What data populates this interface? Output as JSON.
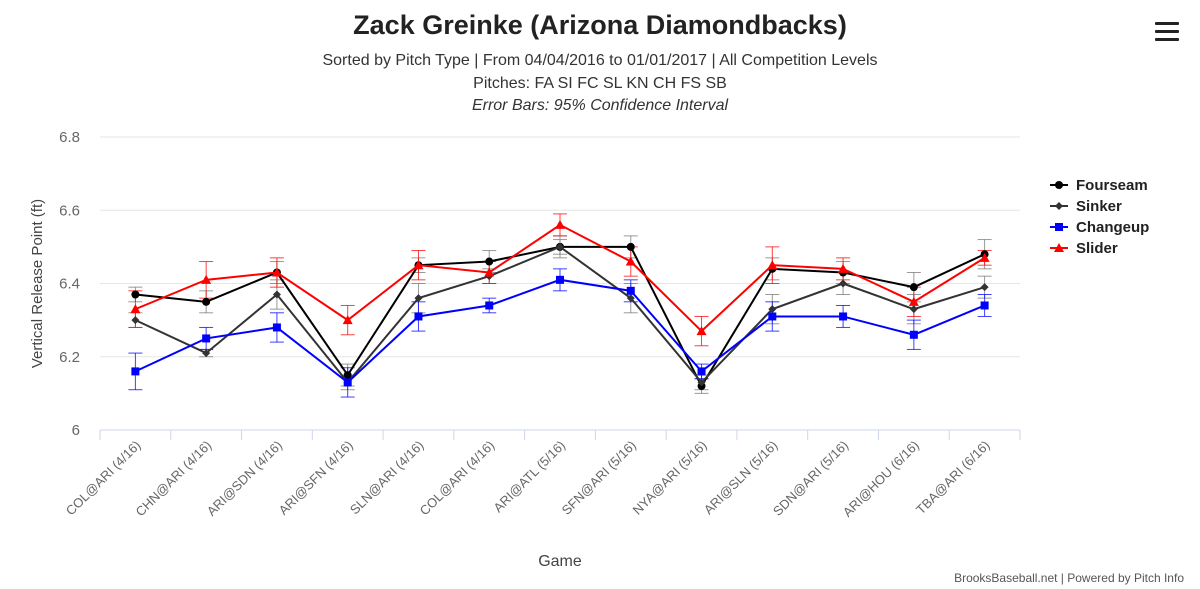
{
  "chart_data": {
    "type": "line",
    "title": "Zack Greinke (Arizona Diamondbacks)",
    "subtitle": "Sorted by Pitch Type | From 04/04/2016 to 01/01/2017 | All Competition Levels",
    "pitches_line": "Pitches: FA SI FC SL KN CH FS SB",
    "error_bars_line": "Error Bars: 95% Confidence Interval",
    "xlabel": "Game",
    "ylabel": "Vertical Release Point (ft)",
    "ylim": [
      6,
      6.8
    ],
    "yticks": [
      "6",
      "6.2",
      "6.4",
      "6.6",
      "6.8"
    ],
    "grid": true,
    "legend_position": "right",
    "categories": [
      "COL@ARI (4/16)",
      "CHN@ARI (4/16)",
      "ARI@SDN (4/16)",
      "ARI@SFN (4/16)",
      "SLN@ARI (4/16)",
      "COL@ARI (4/16)",
      "ARI@ATL (5/16)",
      "SFN@ARI (5/16)",
      "NYA@ARI (5/16)",
      "ARI@SLN (5/16)",
      "SDN@ARI (5/16)",
      "ARI@HOU (6/16)",
      "TBA@ARI (6/16)"
    ],
    "series": [
      {
        "name": "Fourseam",
        "color": "#000000",
        "marker": "circle",
        "values": [
          6.37,
          6.35,
          6.43,
          6.15,
          6.45,
          6.46,
          6.5,
          6.5,
          6.12,
          6.44,
          6.43,
          6.39,
          6.48
        ],
        "err": [
          0.02,
          0.03,
          0.03,
          0.03,
          0.02,
          0.03,
          0.03,
          0.03,
          0.02,
          0.03,
          0.03,
          0.04,
          0.04
        ]
      },
      {
        "name": "Sinker",
        "color": "#333333",
        "marker": "diamond",
        "values": [
          6.3,
          6.21,
          6.37,
          6.13,
          6.36,
          6.42,
          6.5,
          6.36,
          6.13,
          6.33,
          6.4,
          6.33,
          6.39
        ],
        "err": [
          0.02,
          0.01,
          0.04,
          0.02,
          0.04,
          0.02,
          0.02,
          0.04,
          0.02,
          0.04,
          0.03,
          0.04,
          0.03
        ]
      },
      {
        "name": "Changeup",
        "color": "#0000ff",
        "marker": "square",
        "values": [
          6.16,
          6.25,
          6.28,
          6.13,
          6.31,
          6.34,
          6.41,
          6.38,
          6.16,
          6.31,
          6.31,
          6.26,
          6.34
        ],
        "err": [
          0.05,
          0.03,
          0.04,
          0.04,
          0.04,
          0.02,
          0.03,
          0.03,
          0.02,
          0.04,
          0.03,
          0.04,
          0.03
        ]
      },
      {
        "name": "Slider",
        "color": "#ff0000",
        "marker": "triangle",
        "values": [
          6.33,
          6.41,
          6.43,
          6.3,
          6.45,
          6.43,
          6.56,
          6.46,
          6.27,
          6.45,
          6.44,
          6.35,
          6.47
        ],
        "err": [
          0.05,
          0.05,
          0.04,
          0.04,
          0.04,
          0.03,
          0.03,
          0.04,
          0.04,
          0.05,
          0.03,
          0.04,
          0.02
        ]
      }
    ]
  },
  "credits": "BrooksBaseball.net | Powered by Pitch Info"
}
